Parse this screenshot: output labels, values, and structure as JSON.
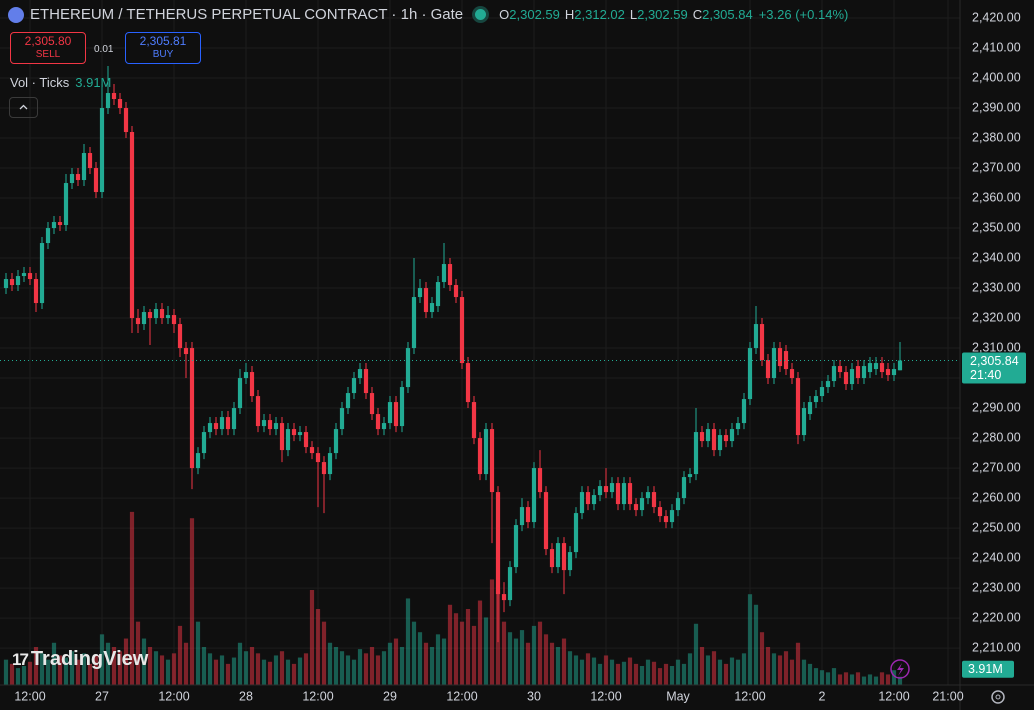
{
  "chart_data": {
    "type": "candlestick",
    "title": "ETHEREUM / TETHERUS PERPETUAL CONTRACT · 1h · Gate",
    "ohlc_legend": [
      {
        "key": "O",
        "value": 2302.59,
        "label": "2,302.59"
      },
      {
        "key": "H",
        "value": 2312.02,
        "label": "2,312.02"
      },
      {
        "key": "L",
        "value": 2302.59,
        "label": "2,302.59"
      },
      {
        "key": "C",
        "value": 2305.84,
        "label": "2,305.84"
      }
    ],
    "change": {
      "value": 3.26,
      "percent": 0.14,
      "label": "+3.26 (+0.14%)"
    },
    "sell": {
      "value": 2305.8,
      "label": "2,305.80",
      "text": "SELL"
    },
    "spread": 0.01,
    "buy": {
      "value": 2305.81,
      "label": "2,305.81",
      "text": "BUY"
    },
    "volume_title": "Vol · Ticks",
    "volume_label": {
      "value": 3.91,
      "label": "3.91M"
    },
    "last_price": {
      "value": 2305.84,
      "label": "2,305.84",
      "countdown": "21:40"
    },
    "watermark": "TradingView",
    "up_color": "#22ab94",
    "down_color": "#f23645",
    "grid": true,
    "xlim": [
      -1,
      159
    ],
    "xticks": [
      {
        "value": 4,
        "label": "12:00"
      },
      {
        "value": 16,
        "label": "27"
      },
      {
        "value": 28,
        "label": "12:00"
      },
      {
        "value": 40,
        "label": "28"
      },
      {
        "value": 52,
        "label": "12:00"
      },
      {
        "value": 64,
        "label": "29"
      },
      {
        "value": 76,
        "label": "12:00"
      },
      {
        "value": 88,
        "label": "30"
      },
      {
        "value": 100,
        "label": "12:00"
      },
      {
        "value": 112,
        "label": "May"
      },
      {
        "value": 124,
        "label": "12:00"
      },
      {
        "value": 136,
        "label": "2"
      },
      {
        "value": 148,
        "label": "12:00"
      },
      {
        "value": 157,
        "label": "21:00"
      }
    ],
    "ylim": [
      2197.7,
      2426
    ],
    "yticks": [
      {
        "value": 2210,
        "label": "2,210.00"
      },
      {
        "value": 2220,
        "label": "2,220.00"
      },
      {
        "value": 2230,
        "label": "2,230.00"
      },
      {
        "value": 2240,
        "label": "2,240.00"
      },
      {
        "value": 2250,
        "label": "2,250.00"
      },
      {
        "value": 2260,
        "label": "2,260.00"
      },
      {
        "value": 2270,
        "label": "2,270.00"
      },
      {
        "value": 2280,
        "label": "2,280.00"
      },
      {
        "value": 2290,
        "label": "2,290.00"
      },
      {
        "value": 2300,
        "label": "2,300.00"
      },
      {
        "value": 2310,
        "label": "2,310.00"
      },
      {
        "value": 2320,
        "label": "2,320.00"
      },
      {
        "value": 2330,
        "label": "2,330.00"
      },
      {
        "value": 2340,
        "label": "2,340.00"
      },
      {
        "value": 2350,
        "label": "2,350.00"
      },
      {
        "value": 2360,
        "label": "2,360.00"
      },
      {
        "value": 2370,
        "label": "2,370.00"
      },
      {
        "value": 2380,
        "label": "2,380.00"
      },
      {
        "value": 2390,
        "label": "2,390.00"
      },
      {
        "value": 2400,
        "label": "2,400.00"
      },
      {
        "value": 2410,
        "label": "2,410.00"
      },
      {
        "value": 2420,
        "label": "2,420.00"
      }
    ],
    "volume_lim": [
      0,
      90
    ],
    "open": [
      2330,
      2333,
      2331,
      2334,
      2335,
      2333,
      2325,
      2345,
      2350,
      2352,
      2351,
      2365,
      2368,
      2366,
      2375,
      2370,
      2362,
      2390,
      2395,
      2393,
      2390,
      2382,
      2320,
      2318,
      2322,
      2320,
      2323,
      2320,
      2321,
      2318,
      2310,
      2310,
      2270,
      2275,
      2282,
      2285,
      2283,
      2287,
      2283,
      2290,
      2300,
      2302,
      2294,
      2284,
      2286,
      2283,
      2285,
      2276,
      2283,
      2281,
      2282,
      2277,
      2275,
      2272,
      2268,
      2275,
      2283,
      2290,
      2295,
      2300,
      2303,
      2295,
      2288,
      2283,
      2285,
      2292,
      2284,
      2297,
      2310,
      2327,
      2330,
      2322,
      2324,
      2332,
      2338,
      2331,
      2327,
      2305,
      2292,
      2280,
      2268,
      2283,
      2262,
      2228,
      2226,
      2237,
      2251,
      2257,
      2252,
      2270,
      2262,
      2243,
      2237,
      2245,
      2236,
      2242,
      2255,
      2262,
      2258,
      2261,
      2264,
      2262,
      2265,
      2258,
      2265,
      2258,
      2256,
      2260,
      2262,
      2257,
      2254,
      2252,
      2256,
      2260,
      2267,
      2268,
      2282,
      2279,
      2283,
      2276,
      2281,
      2279,
      2283,
      2285,
      2293,
      2310,
      2318,
      2306,
      2300,
      2310,
      2309,
      2303,
      2300,
      2281,
      2288,
      2292,
      2294,
      2297,
      2299,
      2304,
      2302,
      2298,
      2304,
      2300,
      2302,
      2303,
      2305,
      2303,
      2301,
      2302.59
    ],
    "high": [
      2335,
      2335,
      2336,
      2337,
      2337,
      2335,
      2347,
      2352,
      2354,
      2354,
      2368,
      2370,
      2370,
      2378,
      2377,
      2372,
      2398,
      2404,
      2398,
      2395,
      2392,
      2384,
      2323,
      2324,
      2323,
      2325,
      2325,
      2324,
      2323,
      2320,
      2312,
      2312,
      2277,
      2284,
      2287,
      2287,
      2289,
      2289,
      2292,
      2303,
      2305,
      2304,
      2296,
      2288,
      2288,
      2287,
      2287,
      2285,
      2285,
      2284,
      2284,
      2279,
      2277,
      2274,
      2277,
      2285,
      2292,
      2297,
      2302,
      2305,
      2305,
      2297,
      2290,
      2287,
      2294,
      2294,
      2299,
      2312,
      2340,
      2333,
      2332,
      2327,
      2334,
      2345,
      2340,
      2333,
      2329,
      2307,
      2294,
      2282,
      2285,
      2285,
      2264,
      2232,
      2239,
      2253,
      2260,
      2259,
      2272,
      2276,
      2264,
      2245,
      2247,
      2247,
      2244,
      2257,
      2264,
      2264,
      2263,
      2266,
      2270,
      2267,
      2267,
      2267,
      2267,
      2260,
      2262,
      2264,
      2264,
      2259,
      2256,
      2258,
      2262,
      2269,
      2270,
      2290,
      2284,
      2285,
      2285,
      2283,
      2283,
      2285,
      2287,
      2295,
      2312,
      2324,
      2320,
      2308,
      2312,
      2312,
      2311,
      2305,
      2302,
      2292,
      2294,
      2296,
      2299,
      2301,
      2306,
      2306,
      2304,
      2305,
      2306,
      2306,
      2307,
      2307,
      2307,
      2305,
      2305,
      2312.02
    ],
    "low": [
      2328,
      2329,
      2329,
      2332,
      2331,
      2322,
      2323,
      2343,
      2348,
      2349,
      2349,
      2363,
      2364,
      2364,
      2368,
      2360,
      2360,
      2388,
      2391,
      2388,
      2380,
      2315,
      2315,
      2316,
      2311,
      2318,
      2318,
      2318,
      2315,
      2307,
      2300,
      2263,
      2268,
      2273,
      2280,
      2281,
      2281,
      2281,
      2281,
      2288,
      2298,
      2292,
      2282,
      2282,
      2281,
      2281,
      2272,
      2274,
      2279,
      2279,
      2275,
      2273,
      2257,
      2255,
      2266,
      2273,
      2281,
      2288,
      2293,
      2298,
      2293,
      2286,
      2281,
      2281,
      2283,
      2282,
      2282,
      2295,
      2308,
      2325,
      2320,
      2320,
      2322,
      2330,
      2329,
      2325,
      2303,
      2290,
      2278,
      2266,
      2266,
      2245,
      2212,
      2222,
      2224,
      2235,
      2249,
      2250,
      2250,
      2260,
      2241,
      2235,
      2235,
      2228,
      2234,
      2240,
      2253,
      2256,
      2256,
      2259,
      2260,
      2260,
      2256,
      2256,
      2256,
      2254,
      2254,
      2258,
      2255,
      2252,
      2250,
      2250,
      2254,
      2258,
      2265,
      2266,
      2277,
      2277,
      2274,
      2274,
      2277,
      2277,
      2281,
      2283,
      2291,
      2308,
      2304,
      2298,
      2298,
      2302,
      2301,
      2298,
      2278,
      2279,
      2286,
      2290,
      2292,
      2295,
      2297,
      2300,
      2296,
      2296,
      2298,
      2298,
      2300,
      2301,
      2300,
      2299,
      2299,
      2302.59
    ],
    "close": [
      2333,
      2331,
      2334,
      2335,
      2333,
      2325,
      2345,
      2350,
      2352,
      2351,
      2365,
      2368,
      2366,
      2375,
      2370,
      2362,
      2390,
      2395,
      2393,
      2390,
      2382,
      2320,
      2318,
      2322,
      2320,
      2323,
      2320,
      2321,
      2318,
      2310,
      2308,
      2270,
      2275,
      2282,
      2285,
      2283,
      2287,
      2283,
      2290,
      2300,
      2302,
      2294,
      2284,
      2286,
      2283,
      2285,
      2276,
      2283,
      2281,
      2282,
      2277,
      2275,
      2272,
      2268,
      2275,
      2283,
      2290,
      2295,
      2300,
      2303,
      2295,
      2288,
      2283,
      2285,
      2292,
      2284,
      2297,
      2310,
      2327,
      2330,
      2322,
      2325,
      2332,
      2338,
      2331,
      2327,
      2305,
      2292,
      2280,
      2268,
      2283,
      2262,
      2228,
      2226,
      2237,
      2251,
      2257,
      2252,
      2270,
      2262,
      2243,
      2237,
      2245,
      2236,
      2242,
      2255,
      2262,
      2258,
      2261,
      2264,
      2262,
      2265,
      2258,
      2265,
      2258,
      2256,
      2260,
      2262,
      2257,
      2254,
      2252,
      2256,
      2260,
      2267,
      2268,
      2282,
      2279,
      2283,
      2276,
      2281,
      2279,
      2283,
      2285,
      2293,
      2310,
      2318,
      2306,
      2300,
      2310,
      2304,
      2303,
      2300,
      2281,
      2290,
      2292,
      2294,
      2297,
      2299,
      2304,
      2302,
      2298,
      2303,
      2300,
      2304,
      2305,
      2305,
      2302,
      2301,
      2303,
      2305.84
    ],
    "volume": [
      12,
      10,
      8,
      9,
      11,
      18,
      15,
      12,
      20,
      14,
      13,
      16,
      12,
      15,
      10,
      14,
      24,
      20,
      18,
      16,
      22,
      82,
      30,
      22,
      18,
      16,
      14,
      12,
      15,
      28,
      20,
      79,
      30,
      18,
      15,
      12,
      14,
      10,
      13,
      20,
      16,
      18,
      15,
      12,
      11,
      14,
      16,
      12,
      10,
      13,
      15,
      45,
      36,
      30,
      20,
      18,
      16,
      14,
      12,
      17,
      15,
      18,
      14,
      16,
      20,
      22,
      18,
      41,
      30,
      25,
      20,
      18,
      24,
      22,
      38,
      34,
      30,
      36,
      28,
      40,
      32,
      50,
      45,
      30,
      25,
      22,
      26,
      20,
      28,
      30,
      24,
      20,
      18,
      22,
      16,
      14,
      12,
      15,
      13,
      10,
      14,
      12,
      10,
      11,
      13,
      10,
      9,
      12,
      11,
      8,
      10,
      9,
      12,
      10,
      15,
      29,
      18,
      14,
      16,
      12,
      10,
      13,
      12,
      15,
      43,
      38,
      25,
      18,
      15,
      14,
      16,
      12,
      20,
      12,
      10,
      8,
      7,
      6,
      8,
      5,
      6,
      5,
      6,
      4,
      5,
      4,
      6,
      5,
      7,
      3.91
    ]
  }
}
